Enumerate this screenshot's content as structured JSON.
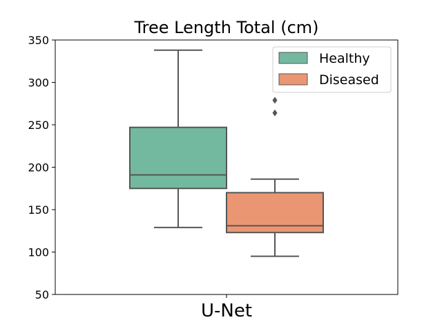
{
  "chart_data": {
    "type": "box",
    "title": "Tree Length Total (cm)",
    "xlabel": "",
    "ylabel": "",
    "categories": [
      "U-Net"
    ],
    "ylim": [
      50,
      350
    ],
    "yticks": [
      50,
      100,
      150,
      200,
      250,
      300,
      350
    ],
    "grid": false,
    "legend_position": "top-right",
    "series": [
      {
        "name": "Healthy",
        "color": "#73b9a0",
        "whisker_low": 129,
        "q1": 175,
        "median": 191,
        "q3": 247,
        "whisker_high": 338,
        "outliers": []
      },
      {
        "name": "Diseased",
        "color": "#eb9673",
        "whisker_low": 95,
        "q1": 123,
        "median": 131,
        "q3": 170,
        "whisker_high": 186,
        "outliers": [
          264,
          279
        ]
      }
    ]
  }
}
